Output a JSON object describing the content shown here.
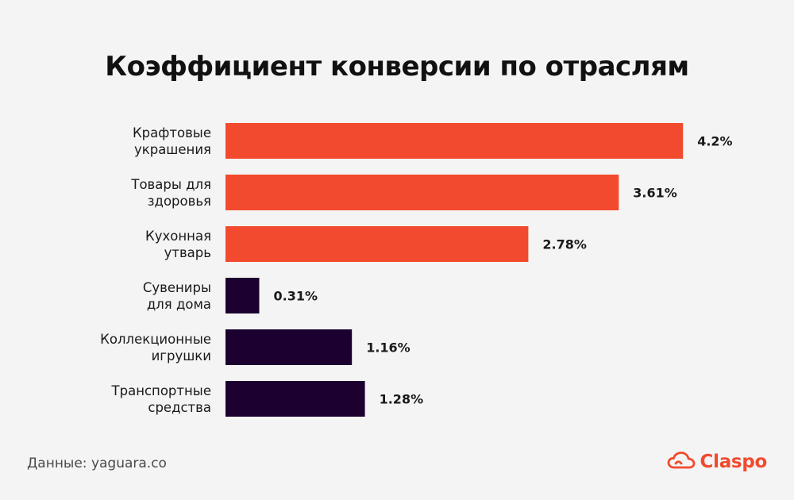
{
  "title": "Коэффициент конверсии по отраслям",
  "source": "Данные: yaguara.co",
  "brand": {
    "name": "Claspo",
    "icon": "cloud-icon",
    "color": "#f24a2e"
  },
  "colors": {
    "highlight": "#f24a2e",
    "default": "#1c0030"
  },
  "chart_data": {
    "type": "bar",
    "orientation": "horizontal",
    "title": "Коэффициент конверсии по отраслям",
    "categories": [
      [
        "Крафтовые",
        "украшения"
      ],
      [
        "Товары для",
        "здоровья"
      ],
      [
        "Кухонная",
        "утварь"
      ],
      [
        "Сувениры",
        "для дома"
      ],
      [
        "Коллекционные",
        "игрушки"
      ],
      [
        "Транспортные",
        "средства"
      ]
    ],
    "values": [
      4.2,
      3.61,
      2.78,
      0.31,
      1.16,
      1.28
    ],
    "value_labels": [
      "4.2%",
      "3.61%",
      "2.78%",
      "0.31%",
      "1.16%",
      "1.28%"
    ],
    "highlighted": [
      true,
      true,
      true,
      false,
      false,
      false
    ],
    "xlabel": "",
    "ylabel": "",
    "grid": false,
    "legend": "none"
  }
}
